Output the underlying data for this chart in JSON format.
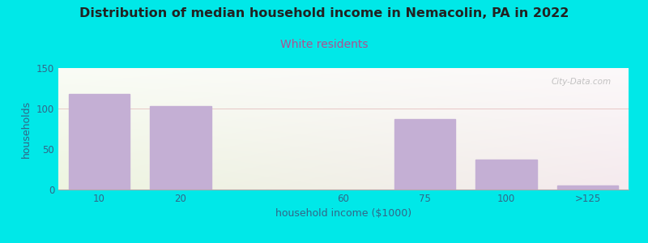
{
  "title": "Distribution of median household income in Nemacolin, PA in 2022",
  "subtitle": "White residents",
  "xlabel": "household income ($1000)",
  "ylabel": "households",
  "categories": [
    "10",
    "20",
    "60",
    "75",
    "100",
    ">125"
  ],
  "x_positions": [
    0,
    1,
    3,
    4,
    5,
    6
  ],
  "values": [
    118,
    103,
    0,
    87,
    37,
    5
  ],
  "bar_color": "#c4afd4",
  "bar_edgecolor": "#c4afd4",
  "ylim": [
    0,
    150
  ],
  "yticks": [
    0,
    50,
    100,
    150
  ],
  "figure_bg": "#00e8e8",
  "title_fontsize": 11.5,
  "subtitle_fontsize": 10,
  "subtitle_color": "#b05090",
  "axis_label_color": "#336688",
  "tick_color": "#336688",
  "axis_label_fontsize": 9,
  "tick_fontsize": 8.5,
  "watermark": "City-Data.com",
  "bar_width": 0.75,
  "bg_left_color": "#edf5e0",
  "bg_right_color": "#f5eaee",
  "bg_top_color": "#ffffff"
}
